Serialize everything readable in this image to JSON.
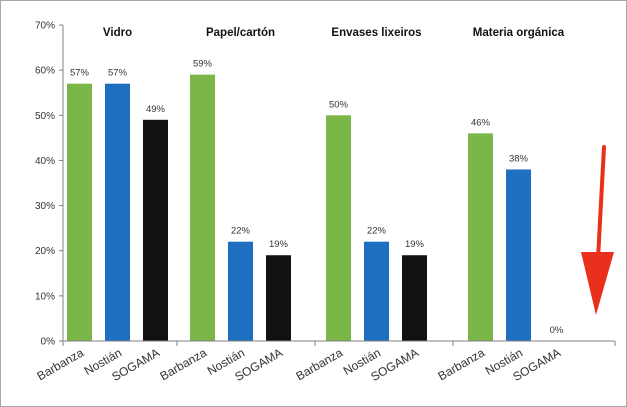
{
  "chart_data": {
    "type": "bar",
    "title": "",
    "xlabel": "",
    "ylabel": "",
    "ylim": [
      0,
      70
    ],
    "y_tick_values": [
      0,
      10,
      20,
      30,
      40,
      50,
      60,
      70
    ],
    "y_tick_labels": [
      "0%",
      "10%",
      "20%",
      "30%",
      "40%",
      "50%",
      "60%",
      "70%"
    ],
    "grid": false,
    "legend": "none",
    "colors": {
      "Barbanza": "#7ab648",
      "Nostián": "#1e6fbf",
      "SOGAMA": "#111111",
      "arrow": "#e8301c"
    },
    "groups": [
      {
        "title": "Vidro",
        "bars": [
          {
            "category": "Barbanza",
            "value": 57,
            "label": "57%"
          },
          {
            "category": "Nostián",
            "value": 57,
            "label": "57%"
          },
          {
            "category": "SOGAMA",
            "value": 49,
            "label": "49%"
          }
        ]
      },
      {
        "title": "Papel/cartón",
        "bars": [
          {
            "category": "Barbanza",
            "value": 59,
            "label": "59%"
          },
          {
            "category": "Nostián",
            "value": 22,
            "label": "22%"
          },
          {
            "category": "SOGAMA",
            "value": 19,
            "label": "19%"
          }
        ]
      },
      {
        "title": "Envases lixeiros",
        "bars": [
          {
            "category": "Barbanza",
            "value": 50,
            "label": "50%"
          },
          {
            "category": "Nostián",
            "value": 22,
            "label": "22%"
          },
          {
            "category": "SOGAMA",
            "value": 19,
            "label": "19%"
          }
        ]
      },
      {
        "title": "Materia orgánica",
        "bars": [
          {
            "category": "Barbanza",
            "value": 46,
            "label": "46%"
          },
          {
            "category": "Nostián",
            "value": 38,
            "label": "38%"
          },
          {
            "category": "SOGAMA",
            "value": 0,
            "label": "0%"
          }
        ]
      }
    ],
    "annotations": [
      {
        "type": "arrow",
        "direction": "down",
        "color": "#e8301c",
        "points_to": "Materia orgánica / SOGAMA"
      }
    ]
  }
}
